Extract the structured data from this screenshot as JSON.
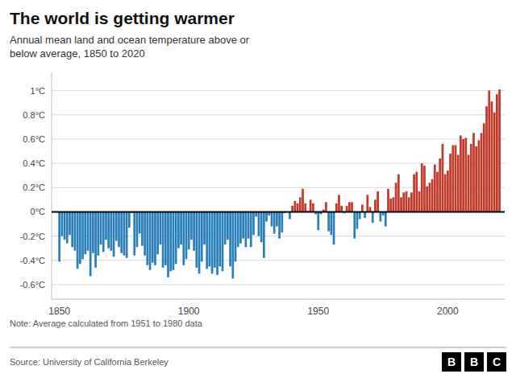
{
  "chart_data": {
    "type": "bar",
    "title": "The world is getting warmer",
    "subtitle": "Annual mean land and ocean temperature above or\nbelow average, 1850 to 2020",
    "annotations": [
      "Note: Average calculated from 1951 to 1980 data",
      "Source: University of California Berkeley",
      "BBC"
    ],
    "x": [
      1850,
      1851,
      1852,
      1853,
      1854,
      1855,
      1856,
      1857,
      1858,
      1859,
      1860,
      1861,
      1862,
      1863,
      1864,
      1865,
      1866,
      1867,
      1868,
      1869,
      1870,
      1871,
      1872,
      1873,
      1874,
      1875,
      1876,
      1877,
      1878,
      1879,
      1880,
      1881,
      1882,
      1883,
      1884,
      1885,
      1886,
      1887,
      1888,
      1889,
      1890,
      1891,
      1892,
      1893,
      1894,
      1895,
      1896,
      1897,
      1898,
      1899,
      1900,
      1901,
      1902,
      1903,
      1904,
      1905,
      1906,
      1907,
      1908,
      1909,
      1910,
      1911,
      1912,
      1913,
      1914,
      1915,
      1916,
      1917,
      1918,
      1919,
      1920,
      1921,
      1922,
      1923,
      1924,
      1925,
      1926,
      1927,
      1928,
      1929,
      1930,
      1931,
      1932,
      1933,
      1934,
      1935,
      1936,
      1937,
      1938,
      1939,
      1940,
      1941,
      1942,
      1943,
      1944,
      1945,
      1946,
      1947,
      1948,
      1949,
      1950,
      1951,
      1952,
      1953,
      1954,
      1955,
      1956,
      1957,
      1958,
      1959,
      1960,
      1961,
      1962,
      1963,
      1964,
      1965,
      1966,
      1967,
      1968,
      1969,
      1970,
      1971,
      1972,
      1973,
      1974,
      1975,
      1976,
      1977,
      1978,
      1979,
      1980,
      1981,
      1982,
      1983,
      1984,
      1985,
      1986,
      1987,
      1988,
      1989,
      1990,
      1991,
      1992,
      1993,
      1994,
      1995,
      1996,
      1997,
      1998,
      1999,
      2000,
      2001,
      2002,
      2003,
      2004,
      2005,
      2006,
      2007,
      2008,
      2009,
      2010,
      2011,
      2012,
      2013,
      2014,
      2015,
      2016,
      2017,
      2018,
      2019,
      2020
    ],
    "values": [
      -0.41,
      -0.2,
      -0.23,
      -0.26,
      -0.19,
      -0.29,
      -0.32,
      -0.47,
      -0.43,
      -0.39,
      -0.35,
      -0.32,
      -0.53,
      -0.34,
      -0.46,
      -0.36,
      -0.27,
      -0.33,
      -0.23,
      -0.3,
      -0.32,
      -0.37,
      -0.24,
      -0.29,
      -0.34,
      -0.36,
      -0.38,
      -0.13,
      -0.01,
      -0.36,
      -0.29,
      -0.18,
      -0.28,
      -0.36,
      -0.44,
      -0.48,
      -0.42,
      -0.44,
      -0.35,
      -0.27,
      -0.46,
      -0.44,
      -0.54,
      -0.49,
      -0.48,
      -0.43,
      -0.3,
      -0.27,
      -0.44,
      -0.39,
      -0.31,
      -0.23,
      -0.32,
      -0.46,
      -0.51,
      -0.41,
      -0.27,
      -0.47,
      -0.45,
      -0.51,
      -0.46,
      -0.52,
      -0.45,
      -0.49,
      -0.27,
      -0.23,
      -0.45,
      -0.55,
      -0.41,
      -0.29,
      -0.26,
      -0.22,
      -0.29,
      -0.22,
      -0.29,
      -0.19,
      -0.04,
      -0.2,
      -0.25,
      -0.38,
      -0.08,
      -0.03,
      -0.12,
      -0.18,
      -0.12,
      -0.22,
      -0.17,
      -0.01,
      0.0,
      -0.06,
      0.05,
      0.09,
      0.07,
      0.12,
      0.19,
      0.07,
      0.01,
      0.1,
      0.07,
      -0.02,
      -0.15,
      -0.02,
      0.02,
      0.08,
      -0.16,
      -0.19,
      -0.27,
      0.07,
      0.14,
      0.05,
      -0.01,
      0.05,
      0.08,
      0.08,
      -0.22,
      -0.14,
      -0.06,
      0.06,
      -0.05,
      0.14,
      0.04,
      -0.09,
      0.1,
      0.17,
      -0.08,
      -0.03,
      -0.12,
      0.19,
      0.11,
      0.12,
      0.24,
      0.31,
      0.12,
      0.16,
      0.17,
      0.12,
      0.16,
      0.31,
      0.33,
      0.17,
      0.4,
      0.38,
      0.21,
      0.24,
      0.27,
      0.39,
      0.33,
      0.44,
      0.56,
      0.31,
      0.34,
      0.48,
      0.55,
      0.55,
      0.47,
      0.63,
      0.6,
      0.61,
      0.47,
      0.56,
      0.65,
      0.54,
      0.59,
      0.65,
      0.73,
      0.87,
      1.0,
      0.91,
      0.82,
      0.97,
      1.01
    ],
    "colors": [
      "#2980b9",
      "#2980b9",
      "#2980b9",
      "#2980b9",
      "#2980b9",
      "#2980b9",
      "#2980b9",
      "#2980b9",
      "#2980b9",
      "#2980b9",
      "#2980b9",
      "#2980b9",
      "#2980b9",
      "#2980b9",
      "#2980b9",
      "#2980b9",
      "#2980b9",
      "#2980b9",
      "#2980b9",
      "#2980b9",
      "#2980b9",
      "#2980b9",
      "#2980b9",
      "#2980b9",
      "#2980b9",
      "#2980b9",
      "#2980b9",
      "#2980b9",
      "#2980b9",
      "#2980b9",
      "#2980b9",
      "#2980b9",
      "#2980b9",
      "#2980b9",
      "#2980b9",
      "#2980b9",
      "#2980b9",
      "#2980b9",
      "#2980b9",
      "#2980b9",
      "#2980b9",
      "#2980b9",
      "#2980b9",
      "#2980b9",
      "#2980b9",
      "#2980b9",
      "#2980b9",
      "#2980b9",
      "#2980b9",
      "#2980b9",
      "#2980b9",
      "#2980b9",
      "#2980b9",
      "#2980b9",
      "#2980b9",
      "#2980b9",
      "#2980b9",
      "#2980b9",
      "#2980b9",
      "#2980b9",
      "#2980b9",
      "#2980b9",
      "#2980b9",
      "#2980b9",
      "#2980b9",
      "#2980b9",
      "#2980b9",
      "#2980b9",
      "#2980b9",
      "#2980b9",
      "#2980b9",
      "#2980b9",
      "#2980b9",
      "#2980b9",
      "#2980b9",
      "#2980b9",
      "#2980b9",
      "#2980b9",
      "#2980b9",
      "#2980b9",
      "#2980b9",
      "#2980b9",
      "#2980b9",
      "#2980b9",
      "#2980b9",
      "#2980b9",
      "#2980b9",
      "#2980b9",
      "#c0392b",
      "#2980b9",
      "#c0392b",
      "#c0392b",
      "#c0392b",
      "#c0392b",
      "#c0392b",
      "#c0392b",
      "#c0392b",
      "#c0392b",
      "#c0392b",
      "#2980b9",
      "#2980b9",
      "#2980b9",
      "#c0392b",
      "#c0392b",
      "#2980b9",
      "#2980b9",
      "#2980b9",
      "#c0392b",
      "#c0392b",
      "#c0392b",
      "#2980b9",
      "#c0392b",
      "#c0392b",
      "#c0392b",
      "#2980b9",
      "#2980b9",
      "#2980b9",
      "#c0392b",
      "#2980b9",
      "#c0392b",
      "#c0392b",
      "#2980b9",
      "#c0392b",
      "#c0392b",
      "#2980b9",
      "#2980b9",
      "#2980b9",
      "#c0392b",
      "#c0392b",
      "#c0392b",
      "#c0392b",
      "#c0392b",
      "#c0392b",
      "#c0392b",
      "#c0392b",
      "#c0392b",
      "#c0392b",
      "#c0392b",
      "#c0392b",
      "#c0392b",
      "#c0392b",
      "#c0392b",
      "#c0392b",
      "#c0392b",
      "#c0392b",
      "#c0392b",
      "#c0392b",
      "#c0392b",
      "#c0392b",
      "#c0392b",
      "#c0392b",
      "#c0392b",
      "#c0392b",
      "#c0392b",
      "#c0392b",
      "#c0392b",
      "#c0392b",
      "#c0392b",
      "#c0392b",
      "#c0392b",
      "#c0392b",
      "#c0392b",
      "#c0392b",
      "#c0392b",
      "#c0392b",
      "#c0392b",
      "#c0392b",
      "#c0392b",
      "#c0392b",
      "#c0392b",
      "#c0392b"
    ],
    "xlim": [
      1847,
      2022
    ],
    "xticks": [
      1850,
      1900,
      1950,
      2000
    ],
    "ylim": [
      -0.72,
      1.15
    ],
    "yticks": [
      {
        "value": 1.0,
        "label": "1°C"
      },
      {
        "value": 0.8,
        "label": "0.8°C"
      },
      {
        "value": 0.6,
        "label": "0.6°C"
      },
      {
        "value": 0.4,
        "label": "0.4°C"
      },
      {
        "value": 0.2,
        "label": "0.2°C"
      },
      {
        "value": 0.0,
        "label": "0°C"
      },
      {
        "value": -0.2,
        "label": "-0.2°C"
      },
      {
        "value": -0.4,
        "label": "-0.4°C"
      },
      {
        "value": -0.6,
        "label": "-0.6°C"
      }
    ],
    "grid": true
  }
}
